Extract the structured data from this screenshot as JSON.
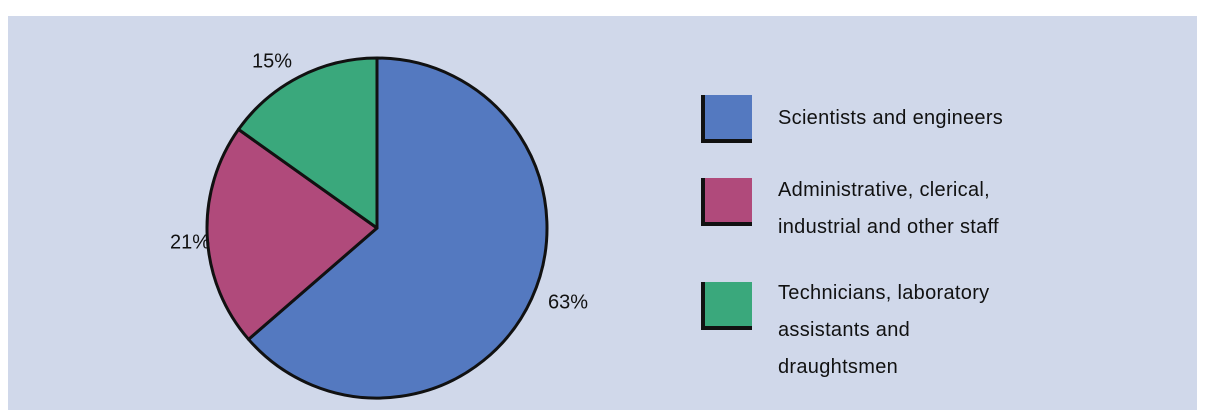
{
  "chart_data": {
    "type": "pie",
    "categories": [
      "Scientists and engineers",
      "Administrative, clerical,\nindustrial and other staff",
      "Technicians, laboratory\nassistants and\ndraughtsmen"
    ],
    "values": [
      63,
      21,
      15
    ],
    "value_labels": [
      "63%",
      "21%",
      "15%"
    ],
    "colors": [
      "#5479c0",
      "#b04a7b",
      "#3aa87c"
    ]
  }
}
